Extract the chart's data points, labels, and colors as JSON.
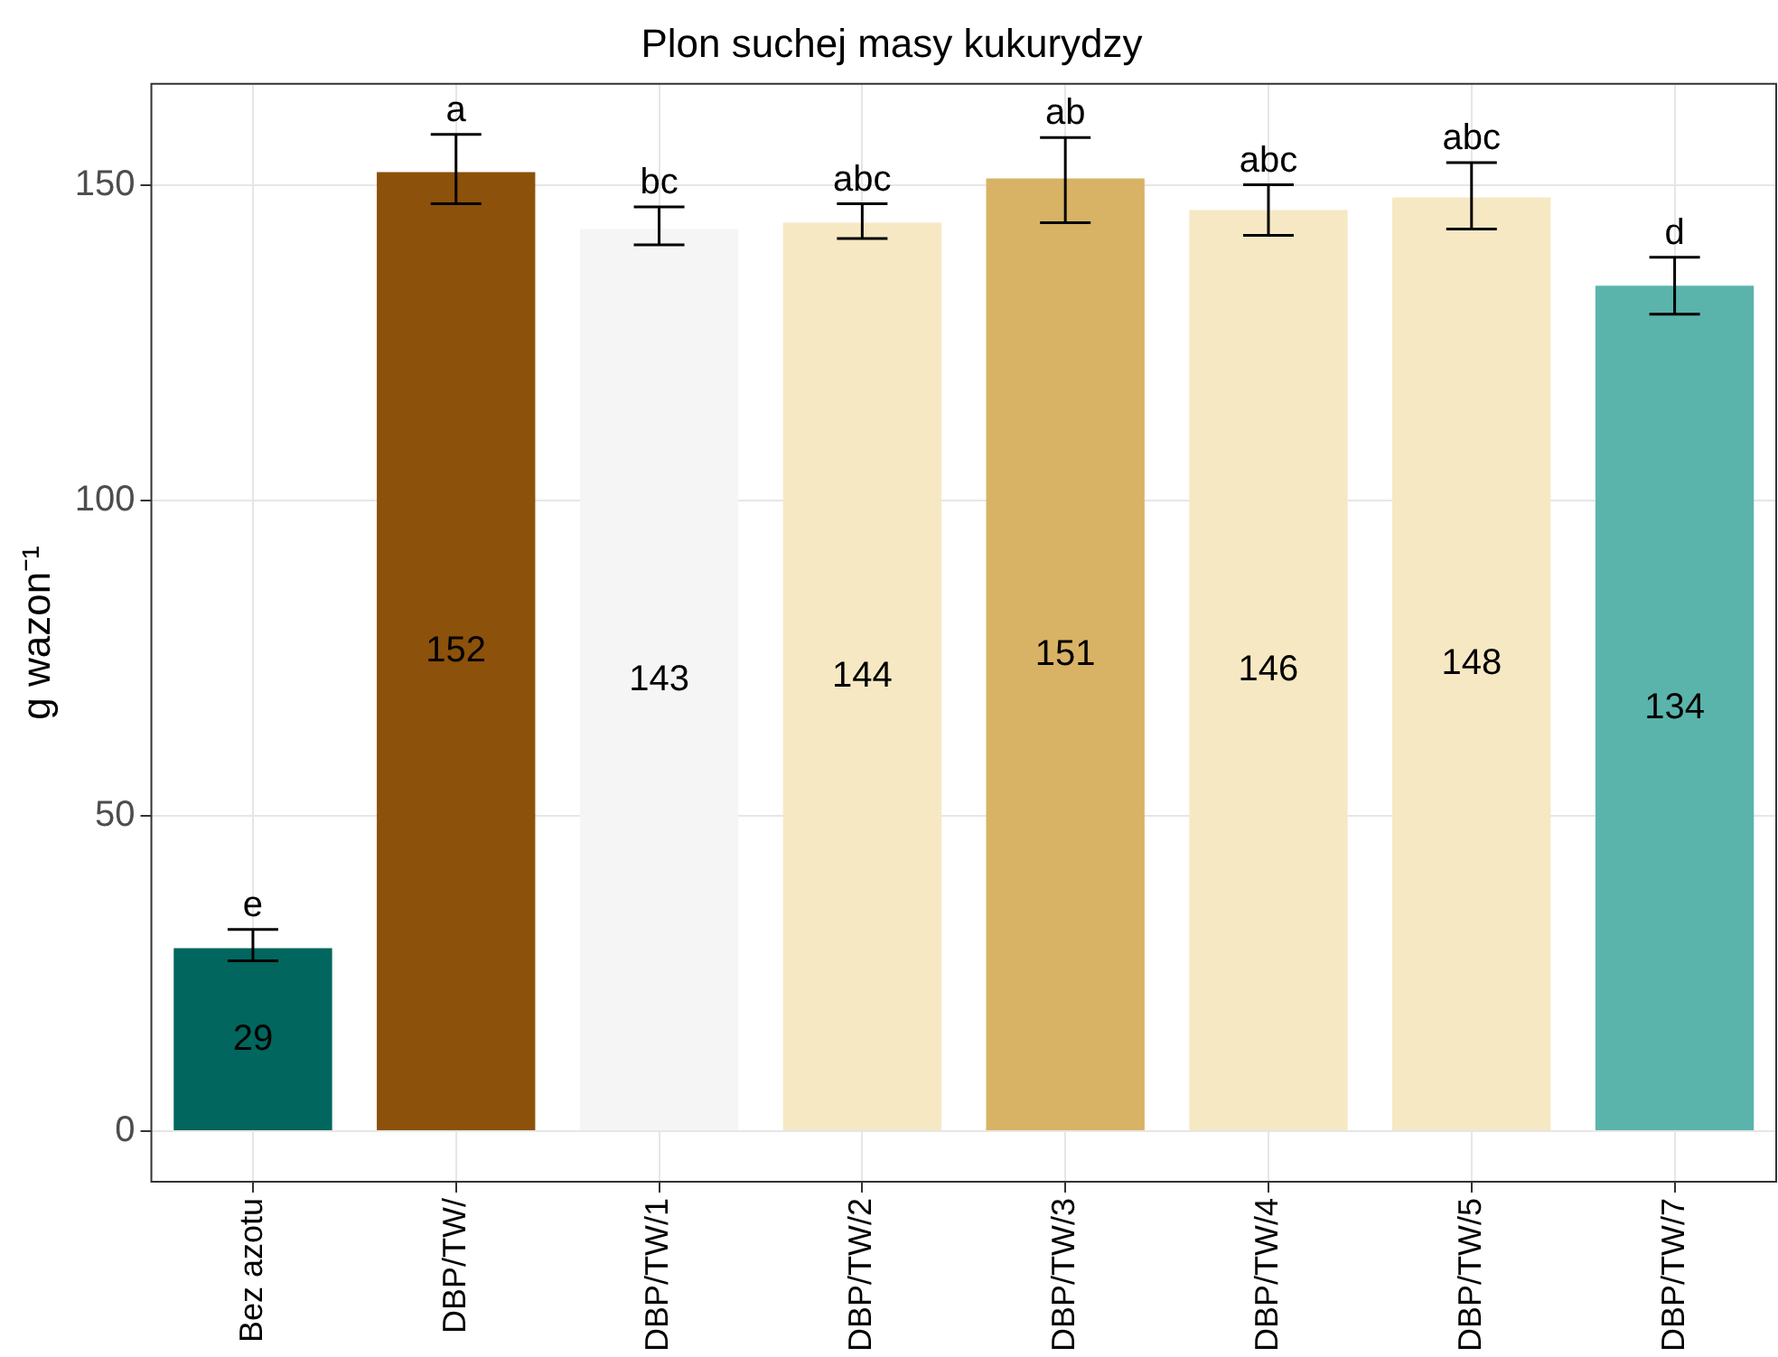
{
  "chart_data": {
    "type": "bar",
    "title": "Plon suchej masy kukurydzy",
    "ylabel": "g wazon⁻¹",
    "categories": [
      "Bez azotu",
      "DBP/TW/",
      "DBP/TW/1",
      "DBP/TW/2",
      "DBP/TW/3",
      "DBP/TW/4",
      "DBP/TW/5",
      "DBP/TW/7"
    ],
    "values": [
      29,
      152,
      143,
      144,
      151,
      146,
      148,
      134
    ],
    "colors": [
      "#01665e",
      "#8c510a",
      "#f5f5f5",
      "#f6e8c3",
      "#d8b365",
      "#f6e8c3",
      "#f6e8c3",
      "#5ab4ac"
    ],
    "errors": [
      [
        27,
        32
      ],
      [
        147,
        158
      ],
      [
        140.5,
        146.5
      ],
      [
        141.5,
        147
      ],
      [
        144,
        157.5
      ],
      [
        142,
        150
      ],
      [
        143,
        153.5
      ],
      [
        129.5,
        138.5
      ]
    ],
    "data_labels": true,
    "annotations": [
      {
        "text": "e",
        "x": "Bez azotu",
        "y": 32
      },
      {
        "text": "a",
        "x": "DBP/TW/",
        "y": 158
      },
      {
        "text": "bc",
        "x": "DBP/TW/1",
        "y": 146.5
      },
      {
        "text": "abc",
        "x": "DBP/TW/2",
        "y": 147
      },
      {
        "text": "ab",
        "x": "DBP/TW/3",
        "y": 157.5
      },
      {
        "text": "abc",
        "x": "DBP/TW/4",
        "y": 150
      },
      {
        "text": "abc",
        "x": "DBP/TW/5",
        "y": 153.5
      },
      {
        "text": "d",
        "x": "DBP/TW/7",
        "y": 138.5
      }
    ],
    "ylim": [
      -8,
      166
    ],
    "yticks": [
      0,
      50,
      100,
      150
    ],
    "grid": true,
    "legend": false
  }
}
